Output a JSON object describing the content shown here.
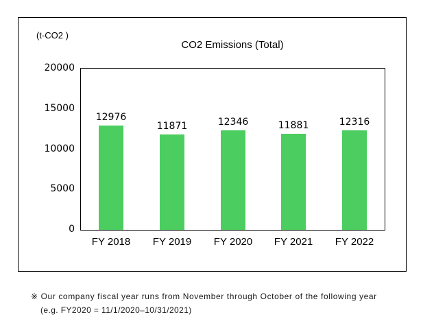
{
  "chart_data": {
    "type": "bar",
    "title": "CO2 Emissions (Total)",
    "unit_label": "(t-CO2 )",
    "categories": [
      "FY 2018",
      "FY 2019",
      "FY 2020",
      "FY 2021",
      "FY 2022"
    ],
    "values": [
      12976,
      11871,
      12346,
      11881,
      12316
    ],
    "ylim": [
      0,
      20000
    ],
    "yticks": [
      0,
      5000,
      10000,
      15000,
      20000
    ],
    "bar_color": "#4bcd60",
    "grid": false,
    "legend": "none",
    "value_labels": "above bars"
  },
  "footnote": {
    "line1": "※ Our company fiscal year runs from November through October of the following year",
    "line2": "(e.g. FY2020 = 11/1/2020–10/31/2021)"
  }
}
